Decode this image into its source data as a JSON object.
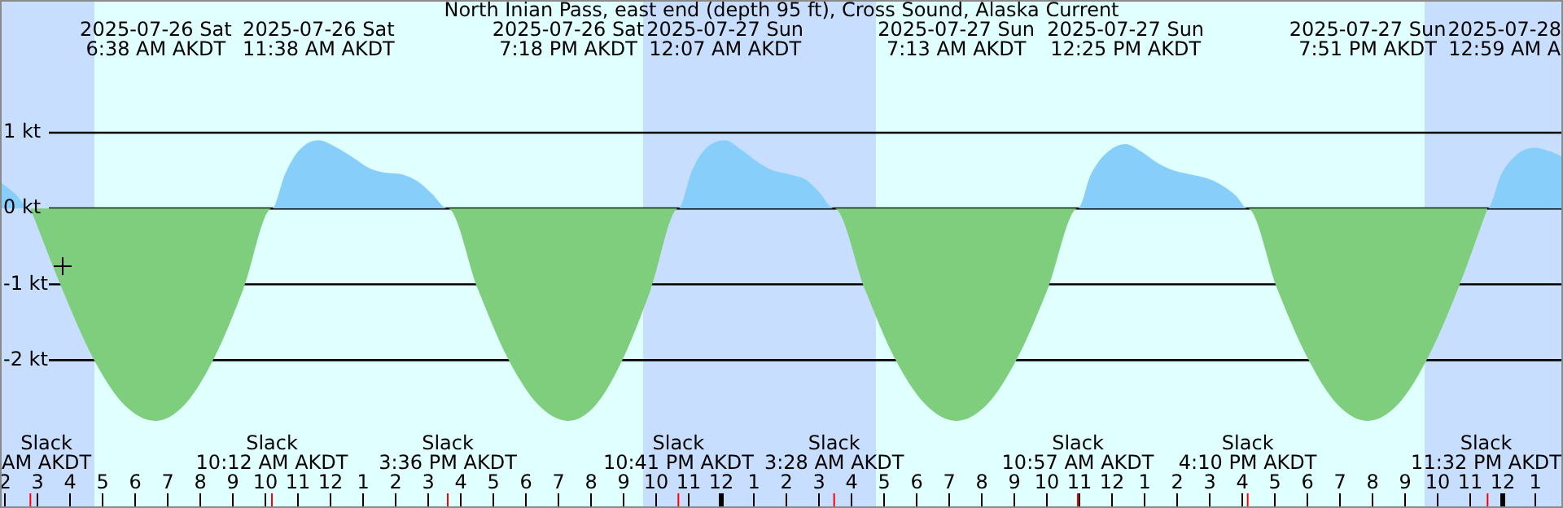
{
  "chart_data": {
    "type": "area",
    "title": "North Inian Pass, east end (depth 95 ft), Cross Sound, Alaska Current",
    "series": [
      {
        "color": "#87cefa",
        "x": [
          "2025-07-26T01:51",
          "2025-07-26T02:18",
          "2025-07-26T02:47",
          "2025-07-26T10:12",
          "2025-07-26T10:36",
          "2025-07-26T11:00",
          "2025-07-26T11:38",
          "2025-07-26T12:12",
          "2025-07-26T12:42",
          "2025-07-26T13:12",
          "2025-07-26T13:42",
          "2025-07-26T14:12",
          "2025-07-26T14:42",
          "2025-07-26T15:06",
          "2025-07-26T15:36",
          "2025-07-26T22:41",
          "2025-07-26T23:06",
          "2025-07-26T23:30",
          "2025-07-27T00:07",
          "2025-07-27T00:36",
          "2025-07-27T01:06",
          "2025-07-27T01:36",
          "2025-07-27T02:06",
          "2025-07-27T02:36",
          "2025-07-27T03:00",
          "2025-07-27T03:28",
          "2025-07-27T10:57",
          "2025-07-27T11:21",
          "2025-07-27T11:48",
          "2025-07-27T12:25",
          "2025-07-27T12:54",
          "2025-07-27T13:24",
          "2025-07-27T13:54",
          "2025-07-27T14:24",
          "2025-07-27T14:54",
          "2025-07-27T15:24",
          "2025-07-27T15:48",
          "2025-07-27T16:10",
          "2025-07-27T23:32",
          "2025-07-27T23:57",
          "2025-07-28T00:24",
          "2025-07-28T00:59",
          "2025-07-28T01:24",
          "2025-07-28T01:51"
        ],
        "values": [
          0.35,
          0.2,
          0,
          0,
          0.45,
          0.75,
          0.9,
          0.8,
          0.67,
          0.53,
          0.47,
          0.45,
          0.35,
          0.2,
          0,
          0,
          0.5,
          0.78,
          0.9,
          0.78,
          0.62,
          0.5,
          0.45,
          0.38,
          0.22,
          0,
          0,
          0.45,
          0.72,
          0.85,
          0.75,
          0.6,
          0.5,
          0.45,
          0.4,
          0.3,
          0.17,
          0,
          0,
          0.45,
          0.7,
          0.8,
          0.76,
          0.68
        ]
      },
      {
        "color": "#7ece7e",
        "x": [
          "2025-07-26T02:47",
          "2025-07-26T03:46",
          "2025-07-26T04:43",
          "2025-07-26T05:40",
          "2025-07-26T06:38",
          "2025-07-26T07:31",
          "2025-07-26T08:25",
          "2025-07-26T09:19",
          "2025-07-26T10:12",
          "2025-07-26T15:36",
          "2025-07-26T16:32",
          "2025-07-26T17:27",
          "2025-07-26T18:23",
          "2025-07-26T19:18",
          "2025-07-26T20:09",
          "2025-07-26T20:59",
          "2025-07-26T21:50",
          "2025-07-26T22:41",
          "2025-07-27T03:28",
          "2025-07-27T04:25",
          "2025-07-27T05:20",
          "2025-07-27T06:17",
          "2025-07-27T07:13",
          "2025-07-27T08:09",
          "2025-07-27T09:05",
          "2025-07-27T10:01",
          "2025-07-27T10:57",
          "2025-07-27T16:10",
          "2025-07-27T17:05",
          "2025-07-27T18:01",
          "2025-07-27T18:56",
          "2025-07-27T19:51",
          "2025-07-27T20:46",
          "2025-07-27T21:41",
          "2025-07-27T22:37",
          "2025-07-27T23:32"
        ],
        "values": [
          0,
          -1.07,
          -1.98,
          -2.59,
          -2.8,
          -2.59,
          -1.98,
          -1.07,
          0,
          0,
          -1.07,
          -1.98,
          -2.59,
          -2.8,
          -2.59,
          -1.98,
          -1.07,
          0,
          0,
          -1.07,
          -1.98,
          -2.59,
          -2.8,
          -2.59,
          -1.98,
          -1.07,
          0,
          0,
          -1.07,
          -1.98,
          -2.59,
          -2.8,
          -2.59,
          -1.98,
          -1.07,
          0
        ]
      }
    ],
    "xlim": [
      "2025-07-26T01:51",
      "2025-07-28T01:51"
    ],
    "ylim": [
      -3.95,
      2.75
    ],
    "yticks": [
      {
        "value": 1,
        "label": "1 kt"
      },
      {
        "value": 0,
        "label": "0 kt"
      },
      {
        "value": -1,
        "label": "-1 kt"
      },
      {
        "value": -2,
        "label": "-2 kt"
      }
    ],
    "xticks": [
      {
        "value": "2025-07-26T02:00",
        "label": "2"
      },
      {
        "value": "2025-07-26T03:00",
        "label": "3"
      },
      {
        "value": "2025-07-26T04:00",
        "label": "4"
      },
      {
        "value": "2025-07-26T05:00",
        "label": "5"
      },
      {
        "value": "2025-07-26T06:00",
        "label": "6"
      },
      {
        "value": "2025-07-26T07:00",
        "label": "7"
      },
      {
        "value": "2025-07-26T08:00",
        "label": "8"
      },
      {
        "value": "2025-07-26T09:00",
        "label": "9"
      },
      {
        "value": "2025-07-26T10:00",
        "label": "10"
      },
      {
        "value": "2025-07-26T11:00",
        "label": "11"
      },
      {
        "value": "2025-07-26T12:00",
        "label": "12"
      },
      {
        "value": "2025-07-26T13:00",
        "label": "1"
      },
      {
        "value": "2025-07-26T14:00",
        "label": "2"
      },
      {
        "value": "2025-07-26T15:00",
        "label": "3"
      },
      {
        "value": "2025-07-26T16:00",
        "label": "4"
      },
      {
        "value": "2025-07-26T17:00",
        "label": "5"
      },
      {
        "value": "2025-07-26T18:00",
        "label": "6"
      },
      {
        "value": "2025-07-26T19:00",
        "label": "7"
      },
      {
        "value": "2025-07-26T20:00",
        "label": "8"
      },
      {
        "value": "2025-07-26T21:00",
        "label": "9"
      },
      {
        "value": "2025-07-26T22:00",
        "label": "10"
      },
      {
        "value": "2025-07-26T23:00",
        "label": "11"
      },
      {
        "value": "2025-07-27T00:00",
        "label": "12"
      },
      {
        "value": "2025-07-27T01:00",
        "label": "1"
      },
      {
        "value": "2025-07-27T02:00",
        "label": "2"
      },
      {
        "value": "2025-07-27T03:00",
        "label": "3"
      },
      {
        "value": "2025-07-27T04:00",
        "label": "4"
      },
      {
        "value": "2025-07-27T05:00",
        "label": "5"
      },
      {
        "value": "2025-07-27T06:00",
        "label": "6"
      },
      {
        "value": "2025-07-27T07:00",
        "label": "7"
      },
      {
        "value": "2025-07-27T08:00",
        "label": "8"
      },
      {
        "value": "2025-07-27T09:00",
        "label": "9"
      },
      {
        "value": "2025-07-27T10:00",
        "label": "10"
      },
      {
        "value": "2025-07-27T11:00",
        "label": "11"
      },
      {
        "value": "2025-07-27T12:00",
        "label": "12"
      },
      {
        "value": "2025-07-27T13:00",
        "label": "1"
      },
      {
        "value": "2025-07-27T14:00",
        "label": "2"
      },
      {
        "value": "2025-07-27T15:00",
        "label": "3"
      },
      {
        "value": "2025-07-27T16:00",
        "label": "4"
      },
      {
        "value": "2025-07-27T17:00",
        "label": "5"
      },
      {
        "value": "2025-07-27T18:00",
        "label": "6"
      },
      {
        "value": "2025-07-27T19:00",
        "label": "7"
      },
      {
        "value": "2025-07-27T20:00",
        "label": "8"
      },
      {
        "value": "2025-07-27T21:00",
        "label": "9"
      },
      {
        "value": "2025-07-27T22:00",
        "label": "10"
      },
      {
        "value": "2025-07-27T23:00",
        "label": "11"
      },
      {
        "value": "2025-07-28T00:00",
        "label": "12"
      },
      {
        "value": "2025-07-28T01:00",
        "label": "1"
      }
    ],
    "grid": "y",
    "legend": false,
    "bands": [
      {
        "axis": "x",
        "from": "2025-07-26T01:51",
        "to": "2025-07-26T04:45",
        "color": "#c8deff"
      },
      {
        "axis": "x",
        "from": "2025-07-26T21:36",
        "to": "2025-07-27T04:45",
        "color": "#c8deff"
      },
      {
        "axis": "x",
        "from": "2025-07-27T21:36",
        "to": "2025-07-28T01:51",
        "color": "#c8deff"
      }
    ],
    "annotations": [
      "2025-07-26 Sat\n6:38 AM AKDT",
      "2025-07-26 Sat\n11:38 AM AKDT",
      "2025-07-26 Sat\n7:18 PM AKDT",
      "2025-07-27 Sun\n12:07 AM AKDT",
      "2025-07-27 Sun\n7:13 AM AKDT",
      "2025-07-27 Sun\n12:25 PM AKDT",
      "2025-07-27 Sun\n7:51 PM AKDT",
      "2025-07-28\n12:59 AM A",
      "Slack\nAM AKDT",
      "Slack\n10:12 AM AKDT",
      "Slack\n3:36 PM AKDT",
      "Slack\n10:41 PM AKDT",
      "Slack\n3:28 AM AKDT",
      "Slack\n10:57 AM AKDT",
      "Slack\n4:10 PM AKDT",
      "Slack\n11:32 PM AKDT"
    ]
  }
}
